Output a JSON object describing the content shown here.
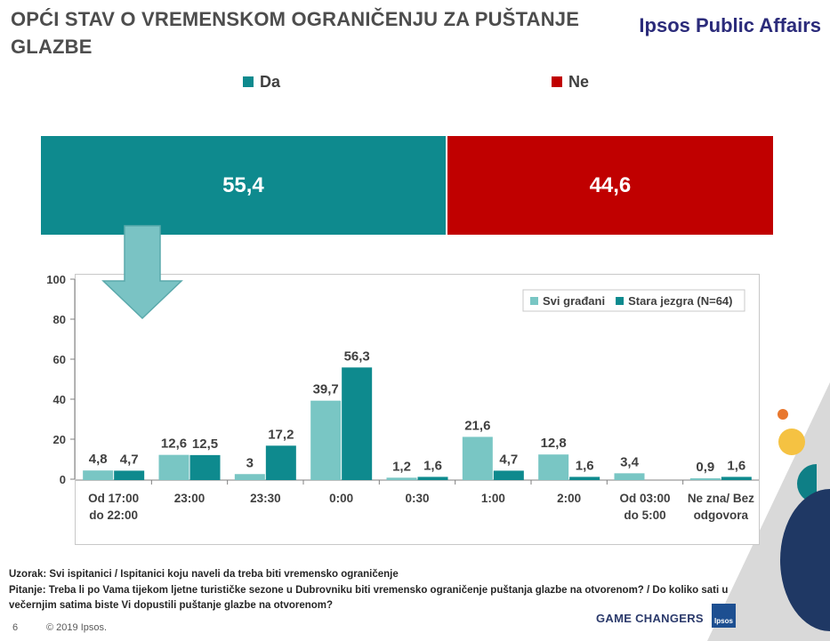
{
  "header": {
    "title": "OPĆI STAV O VREMENSKOM OGRANIČENJU ZA PUŠTANJE GLAZBE",
    "brand": "Ipsos Public Affairs"
  },
  "stacked": {
    "legend": [
      {
        "label": "Da",
        "color": "#0e8a8e"
      },
      {
        "label": "Ne",
        "color": "#c00000"
      }
    ],
    "values": [
      55.4,
      44.6
    ],
    "labels": [
      "55,4",
      "44,6"
    ]
  },
  "colors": {
    "teal_light": "#79c6c4",
    "teal_dark": "#0e8a8e",
    "red": "#c00000",
    "arrow": "#7ac3c4"
  },
  "chart_data": {
    "type": "bar",
    "categories": [
      "Od 17:00 do 22:00",
      "23:00",
      "23:30",
      "0:00",
      "0:30",
      "1:00",
      "2:00",
      "Od 03:00 do 5:00",
      "Ne zna/ Bez odgovora"
    ],
    "category_lines": [
      [
        "Od 17:00",
        "do 22:00"
      ],
      [
        "23:00"
      ],
      [
        "23:30"
      ],
      [
        "0:00"
      ],
      [
        "0:30"
      ],
      [
        "1:00"
      ],
      [
        "2:00"
      ],
      [
        "Od 03:00",
        "do 5:00"
      ],
      [
        "Ne zna/ Bez",
        "odgovora"
      ]
    ],
    "series": [
      {
        "name": "Svi građani",
        "color": "#79c6c4",
        "values": [
          4.8,
          12.6,
          3,
          39.7,
          1.2,
          21.6,
          12.8,
          3.4,
          0.9
        ],
        "labels": [
          "4,8",
          "12,6",
          "3",
          "39,7",
          "1,2",
          "21,6",
          "12,8",
          "3,4",
          "0,9"
        ]
      },
      {
        "name": "Stara jezgra (N=64)",
        "color": "#0e8a8e",
        "values": [
          4.7,
          12.5,
          17.2,
          56.3,
          1.6,
          4.7,
          1.6,
          0,
          1.6
        ],
        "labels": [
          "4,7",
          "12,5",
          "17,2",
          "56,3",
          "1,6",
          "4,7",
          "1,6",
          "",
          "1,6"
        ]
      }
    ],
    "ylim": [
      0,
      100
    ],
    "yticks": [
      0,
      20,
      40,
      60,
      80,
      100
    ],
    "grid": false,
    "legend_position": "top-right"
  },
  "footer": {
    "sample": "Uzorak: Svi ispitanici / Ispitanici koju naveli da treba biti vremensko ograničenje",
    "question": "Pitanje: Treba li po Vama tijekom ljetne turističke sezone u Dubrovniku biti vremensko ograničenje puštanja glazbe na otvorenom? / Do koliko sati u večernjim satima biste Vi dopustili puštanje glazbe na otvorenom?",
    "page_number": "6",
    "copyright": "© 2019 Ipsos.",
    "tagline": "GAME CHANGERS",
    "logo_text": "Ipsos"
  }
}
